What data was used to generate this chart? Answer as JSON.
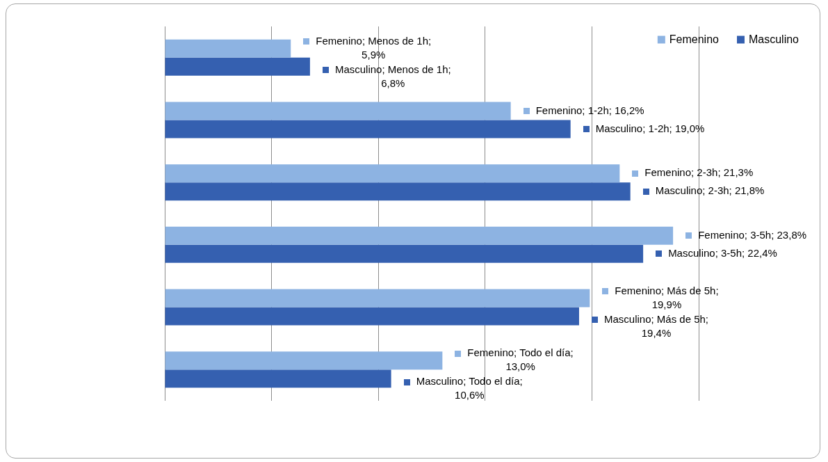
{
  "chart_data": {
    "type": "bar",
    "orientation": "horizontal",
    "categories": [
      null,
      null,
      null,
      null,
      null,
      null
    ],
    "series": [
      {
        "name": "Femenino",
        "color": "#8db3e2",
        "values": [
          5.9,
          16.2,
          21.3,
          23.8,
          19.9,
          13.0
        ],
        "value_labels": [
          "Femenino; Menos de 1h; 5,9%",
          "Femenino; 1-2h; 16,2%",
          "Femenino; 2-3h; 21,3%",
          "Femenino; 3-5h; 23,8%",
          "Femenino; Más de 5h; 19,9%",
          "Femenino; Todo el día; 13,0%"
        ]
      },
      {
        "name": "Masculino",
        "color": "#3560b0",
        "values": [
          6.8,
          19.0,
          21.8,
          22.4,
          19.4,
          10.6
        ],
        "value_labels": [
          "Masculino; Menos de 1h; 6,8%",
          "Masculino; 1-2h; 19,0%",
          "Masculino; 2-3h; 21,8%",
          "Masculino; 3-5h; 22,4%",
          "Masculino; Más de 5h; 19,4%",
          "Masculino; Todo el día; 10,6%"
        ]
      }
    ],
    "xlim": [
      0,
      25
    ],
    "xticks": [
      {
        "value": 0,
        "label": null
      },
      {
        "value": 5,
        "label": null
      },
      {
        "value": 10,
        "label": null
      },
      {
        "value": 15,
        "label": null
      },
      {
        "value": 20,
        "label": null
      },
      {
        "value": 25,
        "label": null
      }
    ],
    "grid": "x",
    "legend": "top right",
    "tick_labels": false
  }
}
